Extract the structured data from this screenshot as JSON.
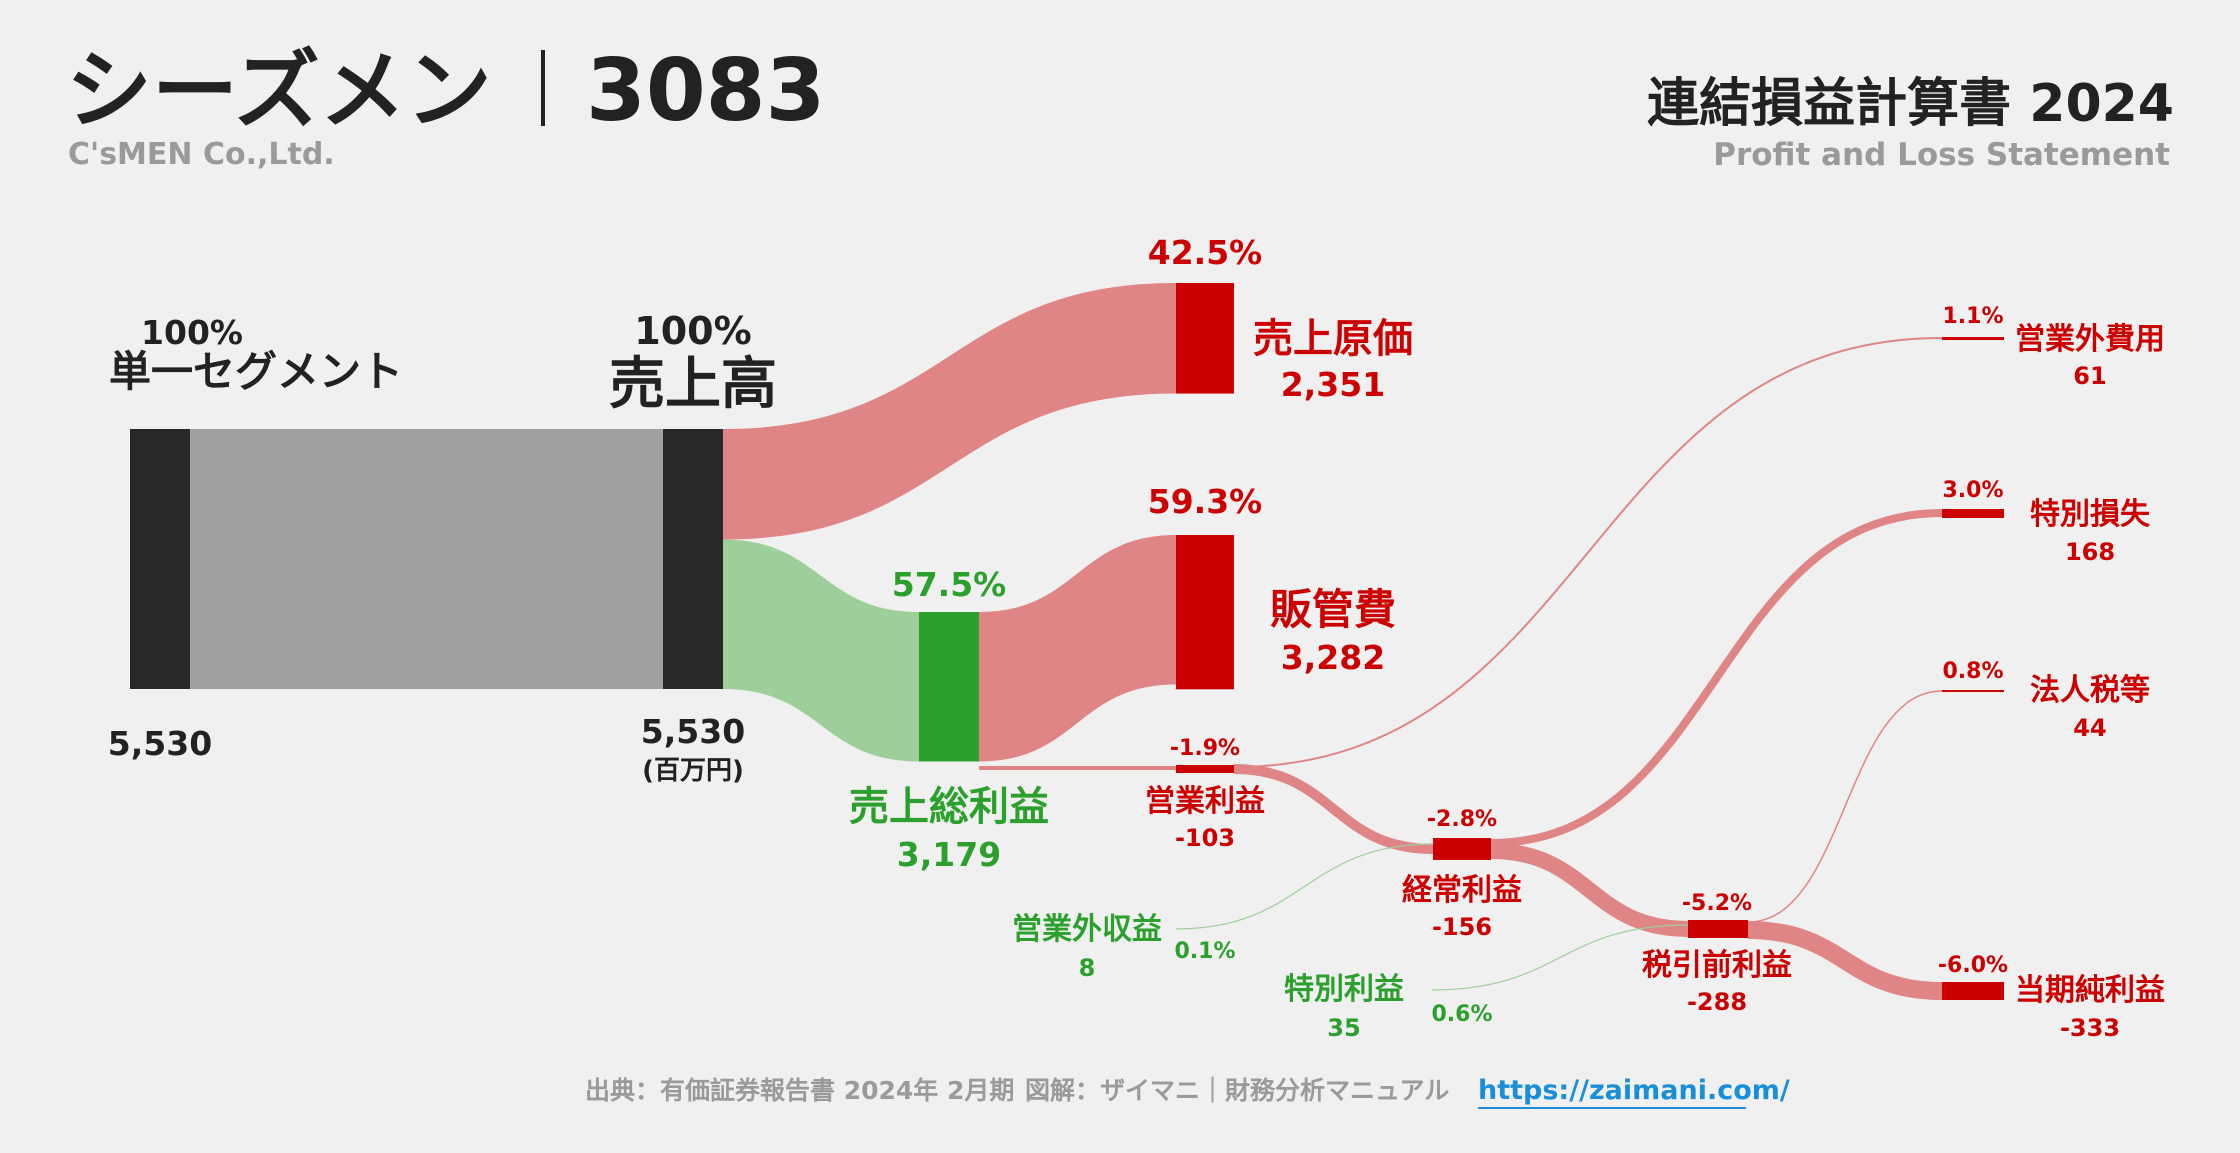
{
  "header": {
    "company": "シーズメン",
    "code": "3083",
    "company_en": "C'sMEN Co.,Ltd.",
    "title": "連結損益計算書 2024",
    "subtitle": "Profit and Loss Statement"
  },
  "footer": {
    "source": "出典：有価証券報告書 2024年 2月期",
    "credit": "図解：ザイマニ｜財務分析マニュアル",
    "url": "https://zaimani.com/"
  },
  "colors": {
    "dark": "#282828",
    "gray": "#a0a0a0",
    "red": "#cc0000",
    "red_flow": "#e08585",
    "green": "#2ca02c",
    "green_flow": "#9ecf9b",
    "text": "#222222",
    "muted": "#9a9a9a",
    "link": "#1a8fd8"
  },
  "chart_data": {
    "type": "sankey",
    "unit_label": "(百万円)",
    "nodes": [
      {
        "id": "segment",
        "label": "単一セグメント",
        "value": 5530,
        "value_label": "5,530",
        "pct_label": "100%",
        "kind": "neutral"
      },
      {
        "id": "revenue",
        "label": "売上高",
        "value": 5530,
        "value_label": "5,530",
        "pct_label": "100%",
        "kind": "neutral"
      },
      {
        "id": "cogs",
        "label": "売上原価",
        "value": 2351,
        "value_label": "2,351",
        "pct_label": "42.5%",
        "kind": "cost"
      },
      {
        "id": "gross",
        "label": "売上総利益",
        "value": 3179,
        "value_label": "3,179",
        "pct_label": "57.5%",
        "kind": "profit"
      },
      {
        "id": "sga",
        "label": "販管費",
        "value": 3282,
        "value_label": "3,282",
        "pct_label": "59.3%",
        "kind": "cost"
      },
      {
        "id": "op",
        "label": "営業利益",
        "value": -103,
        "value_label": "-103",
        "pct_label": "-1.9%",
        "kind": "loss"
      },
      {
        "id": "nonop_inc",
        "label": "営業外収益",
        "value": 8,
        "value_label": "8",
        "pct_label": "0.1%",
        "kind": "profit"
      },
      {
        "id": "nonop_exp",
        "label": "営業外費用",
        "value": 61,
        "value_label": "61",
        "pct_label": "1.1%",
        "kind": "cost"
      },
      {
        "id": "ordinary",
        "label": "経常利益",
        "value": -156,
        "value_label": "-156",
        "pct_label": "-2.8%",
        "kind": "loss"
      },
      {
        "id": "special_inc",
        "label": "特別利益",
        "value": 35,
        "value_label": "35",
        "pct_label": "0.6%",
        "kind": "profit"
      },
      {
        "id": "special_loss",
        "label": "特別損失",
        "value": 168,
        "value_label": "168",
        "pct_label": "3.0%",
        "kind": "cost"
      },
      {
        "id": "pretax",
        "label": "税引前利益",
        "value": -288,
        "value_label": "-288",
        "pct_label": "-5.2%",
        "kind": "loss"
      },
      {
        "id": "tax",
        "label": "法人税等",
        "value": 44,
        "value_label": "44",
        "pct_label": "0.8%",
        "kind": "cost"
      },
      {
        "id": "net",
        "label": "当期純利益",
        "value": -333,
        "value_label": "-333",
        "pct_label": "-6.0%",
        "kind": "loss"
      }
    ],
    "links": [
      {
        "source": "segment",
        "target": "revenue",
        "value": 5530
      },
      {
        "source": "revenue",
        "target": "cogs",
        "value": 2351
      },
      {
        "source": "revenue",
        "target": "gross",
        "value": 3179
      },
      {
        "source": "gross",
        "target": "sga",
        "value": 3179
      },
      {
        "source": "op",
        "target": "nonop_exp",
        "value": 61
      },
      {
        "source": "op",
        "target": "ordinary",
        "value": 103
      },
      {
        "source": "nonop_inc",
        "target": "ordinary",
        "value": 8
      },
      {
        "source": "ordinary",
        "target": "special_loss",
        "value": 168
      },
      {
        "source": "ordinary",
        "target": "pretax",
        "value": 156
      },
      {
        "source": "special_inc",
        "target": "pretax",
        "value": 35
      },
      {
        "source": "pretax",
        "target": "tax",
        "value": 44
      },
      {
        "source": "pretax",
        "target": "net",
        "value": 288
      }
    ]
  }
}
